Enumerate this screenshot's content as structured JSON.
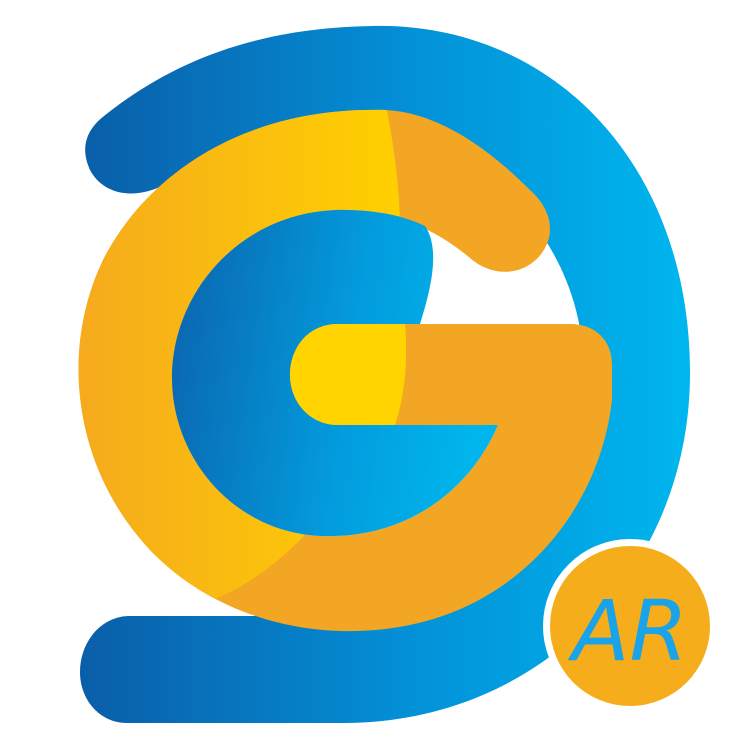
{
  "logo": {
    "name": "G AR app logo",
    "badge_text": "AR",
    "colors": {
      "outer_ring_dark": "#0a5ea8",
      "outer_ring_light": "#00b6ee",
      "ring_orange": "#f2a623",
      "ring_yellow": "#ffd400",
      "center_blue_dark": "#0b63ad",
      "center_blue_light": "#00b5ec",
      "badge_bg": "#f6ad1b",
      "badge_text": "#1aa3e8",
      "background": "#ffffff"
    }
  }
}
